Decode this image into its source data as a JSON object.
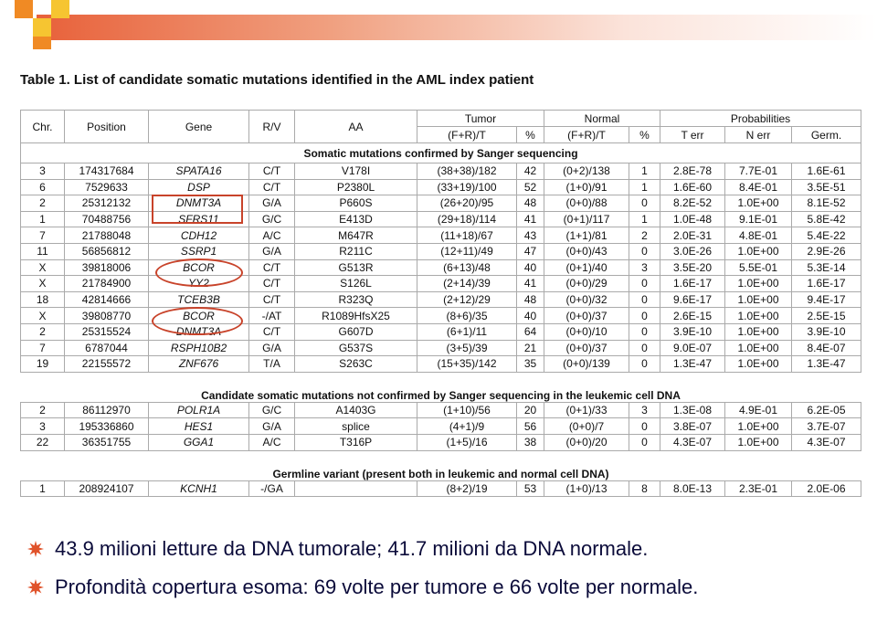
{
  "title": "Table 1. List of candidate somatic mutations identified in the AML index patient",
  "table": {
    "columns": [
      "Chr.",
      "Position",
      "Gene",
      "R/V",
      "AA"
    ],
    "groups": [
      "Tumor",
      "Normal",
      "Probabilities"
    ],
    "subcolumns": [
      "(F+R)/T",
      "%",
      "(F+R)/T",
      "%",
      "T err",
      "N err",
      "Germ."
    ],
    "sections": [
      {
        "heading": "Somatic mutations confirmed by Sanger sequencing",
        "rows": [
          [
            "3",
            "174317684",
            "SPATA16",
            "C/T",
            "V178I",
            "(38+38)/182",
            "42",
            "(0+2)/138",
            "1",
            "2.8E-78",
            "7.7E-01",
            "1.6E-61"
          ],
          [
            "6",
            "7529633",
            "DSP",
            "C/T",
            "P2380L",
            "(33+19)/100",
            "52",
            "(1+0)/91",
            "1",
            "1.6E-60",
            "8.4E-01",
            "3.5E-51"
          ],
          [
            "2",
            "25312132",
            "DNMT3A",
            "G/A",
            "P660S",
            "(26+20)/95",
            "48",
            "(0+0)/88",
            "0",
            "8.2E-52",
            "1.0E+00",
            "8.1E-52"
          ],
          [
            "1",
            "70488756",
            "SFRS11",
            "G/C",
            "E413D",
            "(29+18)/114",
            "41",
            "(0+1)/117",
            "1",
            "1.0E-48",
            "9.1E-01",
            "5.8E-42"
          ],
          [
            "7",
            "21788048",
            "CDH12",
            "A/C",
            "M647R",
            "(11+18)/67",
            "43",
            "(1+1)/81",
            "2",
            "2.0E-31",
            "4.8E-01",
            "5.4E-22"
          ],
          [
            "11",
            "56856812",
            "SSRP1",
            "G/A",
            "R211C",
            "(12+11)/49",
            "47",
            "(0+0)/43",
            "0",
            "3.0E-26",
            "1.0E+00",
            "2.9E-26"
          ],
          [
            "X",
            "39818006",
            "BCOR",
            "C/T",
            "G513R",
            "(6+13)/48",
            "40",
            "(0+1)/40",
            "3",
            "3.5E-20",
            "5.5E-01",
            "5.3E-14"
          ],
          [
            "X",
            "21784900",
            "YY2",
            "C/T",
            "S126L",
            "(2+14)/39",
            "41",
            "(0+0)/29",
            "0",
            "1.6E-17",
            "1.0E+00",
            "1.6E-17"
          ],
          [
            "18",
            "42814666",
            "TCEB3B",
            "C/T",
            "R323Q",
            "(2+12)/29",
            "48",
            "(0+0)/32",
            "0",
            "9.6E-17",
            "1.0E+00",
            "9.4E-17"
          ],
          [
            "X",
            "39808770",
            "BCOR",
            "-/AT",
            "R1089HfsX25",
            "(8+6)/35",
            "40",
            "(0+0)/37",
            "0",
            "2.6E-15",
            "1.0E+00",
            "2.5E-15"
          ],
          [
            "2",
            "25315524",
            "DNMT3A",
            "C/T",
            "G607D",
            "(6+1)/11",
            "64",
            "(0+0)/10",
            "0",
            "3.9E-10",
            "1.0E+00",
            "3.9E-10"
          ],
          [
            "7",
            "6787044",
            "RSPH10B2",
            "G/A",
            "G537S",
            "(3+5)/39",
            "21",
            "(0+0)/37",
            "0",
            "9.0E-07",
            "1.0E+00",
            "8.4E-07"
          ],
          [
            "19",
            "22155572",
            "ZNF676",
            "T/A",
            "S263C",
            "(15+35)/142",
            "35",
            "(0+0)/139",
            "0",
            "1.3E-47",
            "1.0E+00",
            "1.3E-47"
          ]
        ]
      },
      {
        "heading": "Candidate somatic mutations not confirmed by Sanger sequencing in the leukemic cell DNA",
        "rows": [
          [
            "2",
            "86112970",
            "POLR1A",
            "G/C",
            "A1403G",
            "(1+10)/56",
            "20",
            "(0+1)/33",
            "3",
            "1.3E-08",
            "4.9E-01",
            "6.2E-05"
          ],
          [
            "3",
            "195336860",
            "HES1",
            "G/A",
            "splice",
            "(4+1)/9",
            "56",
            "(0+0)/7",
            "0",
            "3.8E-07",
            "1.0E+00",
            "3.7E-07"
          ],
          [
            "22",
            "36351755",
            "GGA1",
            "A/C",
            "T316P",
            "(1+5)/16",
            "38",
            "(0+0)/20",
            "0",
            "4.3E-07",
            "1.0E+00",
            "4.3E-07"
          ]
        ]
      },
      {
        "heading": "Germline variant (present both in leukemic and normal cell DNA)",
        "rows": [
          [
            "1",
            "208924107",
            "KCNH1",
            "-/GA",
            null,
            "(8+2)/19",
            "53",
            "(1+0)/13",
            "8",
            "8.0E-13",
            "2.3E-01",
            "2.0E-06"
          ]
        ]
      }
    ]
  },
  "bullets": [
    "43.9 milioni letture da DNA tumorale; 41.7 milioni da DNA normale.",
    "Profondità copertura esoma: 69 volte per tumore e 66 volte per normale."
  ]
}
